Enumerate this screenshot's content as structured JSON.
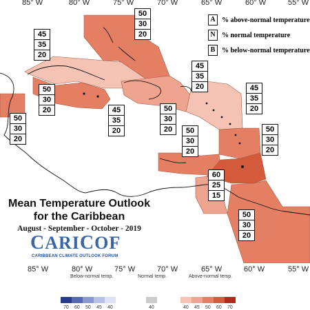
{
  "map": {
    "longitude_ticks_top": [
      "85° W",
      "80° W",
      "75° W",
      "70° W",
      "65° W",
      "60° W",
      "55° W"
    ],
    "longitude_ticks_bottom": [
      "85° W",
      "80° W",
      "75° W",
      "70° W",
      "65° W",
      "60° W",
      "55° W"
    ],
    "region_boxes": [
      {
        "above": "50",
        "normal": "30",
        "below": "20"
      },
      {
        "above": "45",
        "normal": "35",
        "below": "20"
      },
      {
        "above": "45",
        "normal": "35",
        "below": "20"
      },
      {
        "above": "45",
        "normal": "35",
        "below": "20"
      },
      {
        "above": "50",
        "normal": "30",
        "below": "20"
      },
      {
        "above": "45",
        "normal": "35",
        "below": "20"
      },
      {
        "above": "50",
        "normal": "30",
        "below": "20"
      },
      {
        "above": "50",
        "normal": "30",
        "below": "20"
      },
      {
        "above": "50",
        "normal": "30",
        "below": "20"
      },
      {
        "above": "50",
        "normal": "30",
        "below": "20"
      },
      {
        "above": "60",
        "normal": "25",
        "below": "15"
      },
      {
        "above": "50",
        "normal": "30",
        "below": "20"
      }
    ],
    "colors": {
      "above_40": "#f4c3b4",
      "above_45": "#eea48e",
      "above_50": "#e47f63",
      "above_60": "#d45a3c",
      "above_70": "#b22a1c",
      "below_70": "#283c8c",
      "below_60": "#5468b4",
      "below_50": "#8a98d0",
      "below_45": "#b8c0e4",
      "below_40": "#dde2f4",
      "normal": "#cccccc"
    }
  },
  "legend": {
    "rows": [
      {
        "key": "A",
        "text": "% above-normal temperature"
      },
      {
        "key": "N",
        "text": "% normal temperature"
      },
      {
        "key": "B",
        "text": "% below-normal temperature"
      }
    ]
  },
  "title": {
    "line1": "Mean Temperature Outlook",
    "line2": "for the Caribbean",
    "subtitle": "August - September - October - 2019"
  },
  "logo": {
    "name_c": "C",
    "name_ari": "ARI",
    "name_c2": "C",
    "name_of": "OF",
    "tagline": "CARIBBEAN CLIMATE OUTLOOK FORUM"
  },
  "colorbar": {
    "below_title": "Below-normal temp.",
    "normal_title": "Normal temp.",
    "above_title": "Above-normal temp.",
    "below_ticks": [
      "70",
      "60",
      "50",
      "45",
      "40"
    ],
    "normal_tick": "40",
    "above_ticks": [
      "40",
      "45",
      "50",
      "60",
      "70"
    ]
  }
}
